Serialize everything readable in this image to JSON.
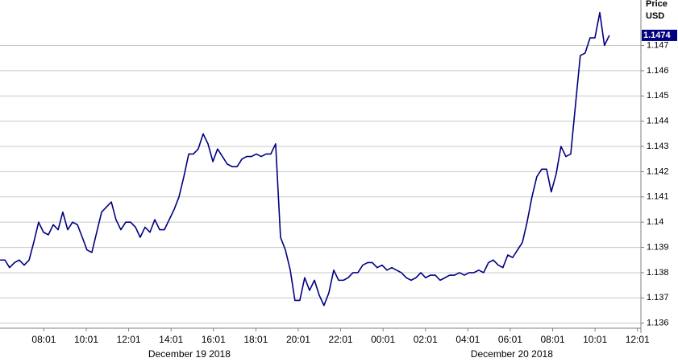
{
  "chart_data": {
    "type": "line",
    "ylabel": "Price",
    "yunit": "USD",
    "color": "#000080",
    "last_value": 1.1474,
    "xlim": [
      5.948,
      36.18
    ],
    "ylim": [
      1.1358,
      1.1488
    ],
    "grid": true,
    "yticks": [
      1.136,
      1.137,
      1.138,
      1.139,
      1.14,
      1.141,
      1.142,
      1.143,
      1.144,
      1.145,
      1.146,
      1.147
    ],
    "xticks": [
      {
        "value": 8.017,
        "label": "08:01"
      },
      {
        "value": 10.017,
        "label": "10:01"
      },
      {
        "value": 12.017,
        "label": "12:01"
      },
      {
        "value": 14.017,
        "label": "14:01"
      },
      {
        "value": 16.017,
        "label": "16:01"
      },
      {
        "value": 18.017,
        "label": "18:01"
      },
      {
        "value": 20.017,
        "label": "20:01"
      },
      {
        "value": 22.017,
        "label": "22:01"
      },
      {
        "value": 24.017,
        "label": "00:01"
      },
      {
        "value": 26.017,
        "label": "02:01"
      },
      {
        "value": 28.017,
        "label": "04:01"
      },
      {
        "value": 30.017,
        "label": "06:01"
      },
      {
        "value": 32.017,
        "label": "08:01"
      },
      {
        "value": 34.017,
        "label": "10:01"
      },
      {
        "value": 36.017,
        "label": "12:01"
      }
    ],
    "date_labels": [
      {
        "value": 14.88,
        "label": "December 19 2018"
      },
      {
        "value": 30.09,
        "label": "December 20 2018"
      }
    ],
    "x": [
      5.95,
      6.18,
      6.4,
      6.63,
      6.86,
      7.09,
      7.32,
      7.54,
      7.77,
      8.0,
      8.23,
      8.46,
      8.69,
      8.91,
      9.14,
      9.37,
      9.6,
      9.83,
      10.05,
      10.28,
      10.51,
      10.74,
      10.97,
      11.2,
      11.42,
      11.65,
      11.88,
      12.11,
      12.34,
      12.56,
      12.79,
      13.02,
      13.25,
      13.48,
      13.7,
      13.93,
      14.16,
      14.39,
      14.62,
      14.85,
      15.07,
      15.3,
      15.53,
      15.76,
      15.99,
      16.21,
      16.44,
      16.67,
      16.9,
      17.13,
      17.36,
      17.58,
      17.81,
      18.04,
      18.27,
      18.5,
      18.72,
      18.95,
      19.18,
      19.41,
      19.64,
      19.86,
      20.09,
      20.32,
      20.55,
      20.78,
      21.01,
      21.23,
      21.46,
      21.69,
      21.92,
      22.15,
      22.37,
      22.6,
      22.83,
      23.06,
      23.29,
      23.51,
      23.74,
      23.97,
      24.2,
      24.43,
      24.65,
      24.88,
      25.11,
      25.34,
      25.57,
      25.8,
      26.02,
      26.25,
      26.48,
      26.71,
      26.94,
      27.16,
      27.39,
      27.62,
      27.85,
      28.08,
      28.3,
      28.53,
      28.76,
      28.99,
      29.22,
      29.45,
      29.67,
      29.9,
      30.13,
      30.36,
      30.59,
      30.81,
      31.04,
      31.27,
      31.5,
      31.73,
      31.95,
      32.18,
      32.41,
      32.64,
      32.87,
      33.1,
      33.32,
      33.55,
      33.78,
      34.01,
      34.24,
      34.46,
      34.69
    ],
    "values": [
      1.1385,
      1.1385,
      1.1382,
      1.1384,
      1.1385,
      1.1383,
      1.1385,
      1.1392,
      1.14,
      1.1396,
      1.1395,
      1.1399,
      1.1397,
      1.1404,
      1.1397,
      1.14,
      1.1399,
      1.1394,
      1.1389,
      1.1388,
      1.1396,
      1.1404,
      1.1406,
      1.1408,
      1.1401,
      1.1397,
      1.14,
      1.14,
      1.1398,
      1.1394,
      1.1398,
      1.1396,
      1.1401,
      1.1397,
      1.1397,
      1.1401,
      1.1405,
      1.141,
      1.1418,
      1.1427,
      1.1427,
      1.1429,
      1.1435,
      1.1431,
      1.1424,
      1.1429,
      1.1426,
      1.1423,
      1.1422,
      1.1422,
      1.1425,
      1.1426,
      1.1426,
      1.1427,
      1.1426,
      1.1427,
      1.1427,
      1.1431,
      1.1394,
      1.1389,
      1.1381,
      1.1369,
      1.1369,
      1.1378,
      1.1373,
      1.1377,
      1.1371,
      1.1367,
      1.1372,
      1.1381,
      1.1377,
      1.1377,
      1.1378,
      1.138,
      1.138,
      1.1383,
      1.1384,
      1.1384,
      1.1382,
      1.1383,
      1.1381,
      1.1382,
      1.1381,
      1.138,
      1.1378,
      1.1377,
      1.1378,
      1.138,
      1.1378,
      1.1379,
      1.1379,
      1.1377,
      1.1378,
      1.1379,
      1.1379,
      1.138,
      1.1379,
      1.138,
      1.138,
      1.1381,
      1.138,
      1.1384,
      1.1385,
      1.1383,
      1.1382,
      1.1387,
      1.1386,
      1.1389,
      1.1392,
      1.14,
      1.141,
      1.1418,
      1.1421,
      1.1421,
      1.1412,
      1.1419,
      1.143,
      1.1426,
      1.1427,
      1.1447,
      1.1466,
      1.1467,
      1.1473,
      1.1473,
      1.1483,
      1.147,
      1.1474
    ]
  }
}
